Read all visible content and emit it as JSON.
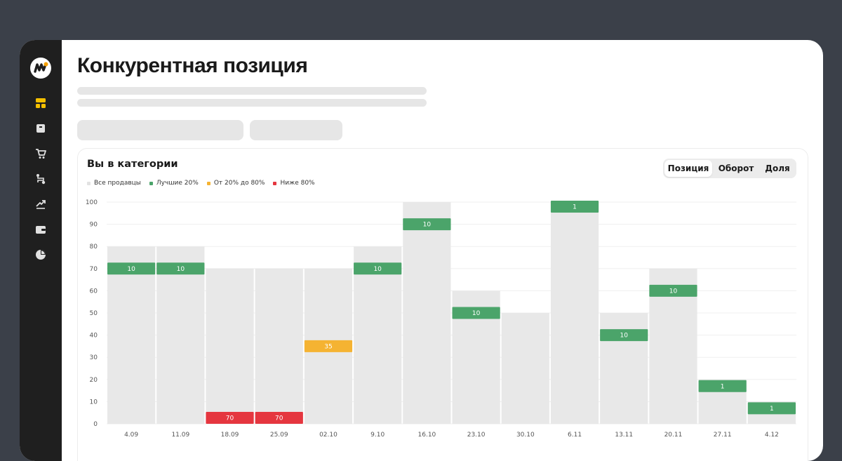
{
  "sidebar": {
    "items": [
      {
        "icon": "dashboard-icon"
      },
      {
        "icon": "box-icon"
      },
      {
        "icon": "cart-icon"
      },
      {
        "icon": "route-icon"
      },
      {
        "icon": "trend-icon"
      },
      {
        "icon": "wallet-icon"
      },
      {
        "icon": "pie-chart-icon"
      }
    ]
  },
  "page": {
    "title": "Конкурентная позиция"
  },
  "card": {
    "title": "Вы в категории",
    "tabs": [
      "Позиция",
      "Оборот",
      "Доля"
    ],
    "active_tab": "Позиция"
  },
  "colors": {
    "all_sellers": "#e8e8e8",
    "top20": "#4ba46a",
    "mid": "#f5b332",
    "bottom": "#e5363f",
    "accent": "#f5c000"
  },
  "chart_data": {
    "type": "bar",
    "legend": [
      {
        "name": "Все продавцы",
        "color": "#e8e8e8"
      },
      {
        "name": "Лучшие 20%",
        "color": "#4ba46a"
      },
      {
        "name": "От 20% до 80%",
        "color": "#f5b332"
      },
      {
        "name": "Ниже 80%",
        "color": "#e5363f"
      }
    ],
    "categories": [
      "4.09",
      "11.09",
      "18.09",
      "25.09",
      "02.10",
      "9.10",
      "16.10",
      "23.10",
      "30.10",
      "6.11",
      "13.11",
      "20.11",
      "27.11",
      "4.12"
    ],
    "all_sellers": [
      80,
      80,
      70,
      70,
      70,
      80,
      100,
      60,
      50,
      100,
      50,
      70,
      20,
      10
    ],
    "position": [
      70,
      70,
      2,
      2,
      35,
      70,
      90,
      50,
      null,
      100,
      40,
      60,
      17,
      7
    ],
    "position_label": [
      "10",
      "10",
      "70",
      "70",
      "35",
      "10",
      "10",
      "10",
      null,
      "1",
      "10",
      "10",
      "1",
      "1"
    ],
    "position_group": [
      "top",
      "top",
      "bottom",
      "bottom",
      "mid",
      "top",
      "top",
      "top",
      null,
      "top",
      "top",
      "top",
      "top",
      "top"
    ],
    "ylim": [
      0,
      100
    ],
    "yticks": [
      0,
      10,
      20,
      30,
      40,
      50,
      60,
      70,
      80,
      90,
      100
    ],
    "grid": true
  }
}
